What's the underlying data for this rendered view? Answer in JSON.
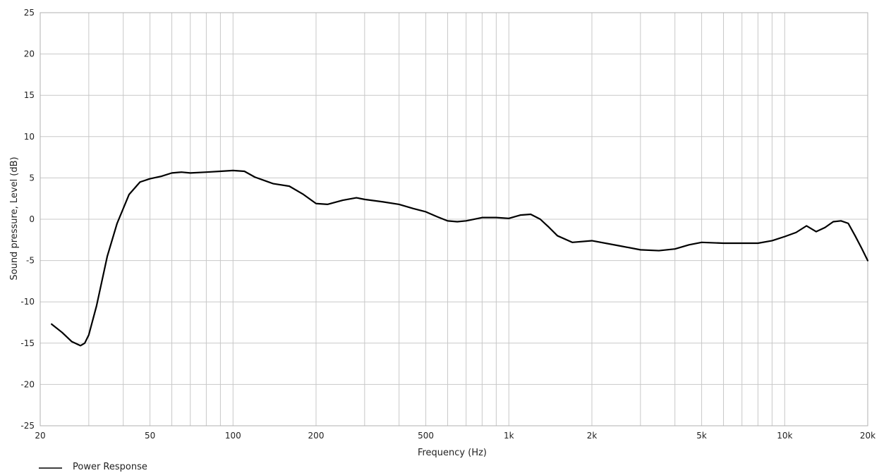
{
  "chart_data": {
    "type": "line",
    "xlabel": "Frequency  (Hz)",
    "ylabel": "Sound pressure, Level  (dB)",
    "x_scale": "log",
    "xlim": [
      20,
      20000
    ],
    "ylim": [
      -25,
      25
    ],
    "grid": true,
    "legend_placement": "bottom-left",
    "y_ticks": [
      25,
      20,
      15,
      10,
      5,
      0,
      -5,
      -10,
      -15,
      -20,
      -25
    ],
    "x_ticks": [
      {
        "value": 20,
        "label": "20"
      },
      {
        "value": 50,
        "label": "50"
      },
      {
        "value": 100,
        "label": "100"
      },
      {
        "value": 200,
        "label": "200"
      },
      {
        "value": 500,
        "label": "500"
      },
      {
        "value": 1000,
        "label": "1k"
      },
      {
        "value": 2000,
        "label": "2k"
      },
      {
        "value": 5000,
        "label": "5k"
      },
      {
        "value": 10000,
        "label": "10k"
      },
      {
        "value": 20000,
        "label": "20k"
      }
    ],
    "series": [
      {
        "name": "Power Response",
        "color": "#000000",
        "x": [
          22,
          24,
          26,
          28,
          29,
          30,
          32,
          35,
          38,
          42,
          46,
          50,
          55,
          60,
          65,
          70,
          80,
          90,
          100,
          110,
          120,
          140,
          160,
          180,
          200,
          220,
          250,
          280,
          300,
          350,
          400,
          450,
          500,
          550,
          600,
          650,
          700,
          800,
          900,
          1000,
          1100,
          1200,
          1300,
          1400,
          1500,
          1700,
          2000,
          2500,
          3000,
          3500,
          4000,
          4500,
          5000,
          6000,
          7000,
          8000,
          9000,
          10000,
          11000,
          12000,
          13000,
          14000,
          15000,
          16000,
          17000,
          18000,
          19000,
          20000
        ],
        "y": [
          -12.7,
          -13.7,
          -14.8,
          -15.3,
          -15.0,
          -14.0,
          -10.5,
          -4.5,
          -0.5,
          3.0,
          4.5,
          4.9,
          5.2,
          5.6,
          5.7,
          5.6,
          5.7,
          5.8,
          5.9,
          5.8,
          5.1,
          4.3,
          4.0,
          3.0,
          1.9,
          1.8,
          2.3,
          2.6,
          2.4,
          2.1,
          1.8,
          1.3,
          0.9,
          0.3,
          -0.2,
          -0.3,
          -0.2,
          0.2,
          0.2,
          0.1,
          0.5,
          0.6,
          0.0,
          -1.0,
          -2.0,
          -2.8,
          -2.6,
          -3.2,
          -3.7,
          -3.8,
          -3.6,
          -3.1,
          -2.8,
          -2.9,
          -2.9,
          -2.9,
          -2.6,
          -2.1,
          -1.6,
          -0.8,
          -1.5,
          -1.0,
          -0.3,
          -0.2,
          -0.5,
          -2.0,
          -3.5,
          -5.0
        ]
      }
    ]
  }
}
